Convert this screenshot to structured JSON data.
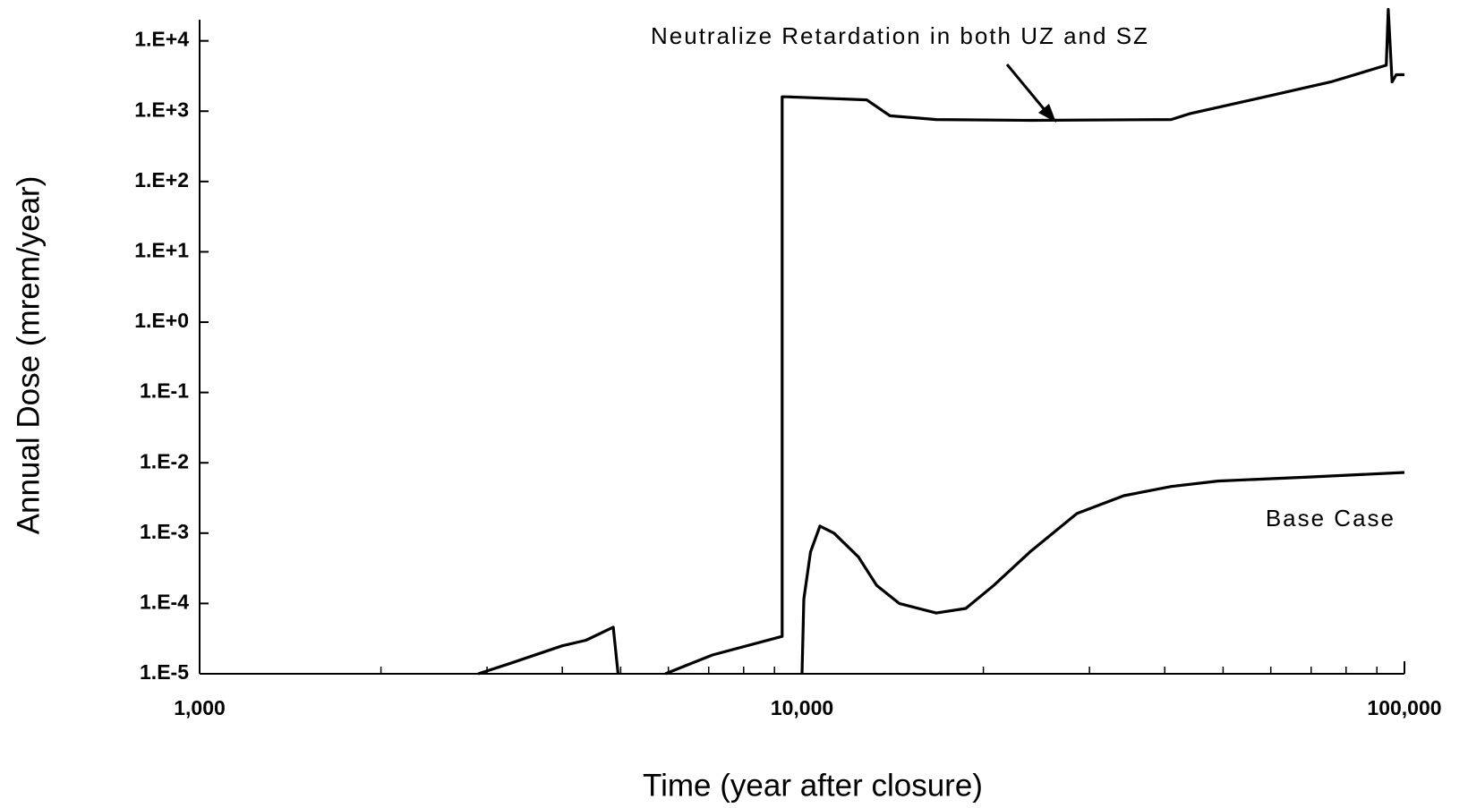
{
  "chart_data": {
    "type": "line",
    "xlabel": "Time (year after closure)",
    "ylabel": "Annual Dose (mrem/year)",
    "xscale": "log",
    "yscale": "log",
    "xlim": [
      1000,
      100000
    ],
    "ylim": [
      1e-05,
      20000
    ],
    "xticks": [
      {
        "value": 1000,
        "label": "1,000"
      },
      {
        "value": 10000,
        "label": "10,000"
      },
      {
        "value": 100000,
        "label": "100,000"
      }
    ],
    "xminorticks": [
      2000,
      3000,
      4000,
      5000,
      6000,
      7000,
      8000,
      9000,
      20000,
      30000,
      40000,
      50000,
      60000,
      70000,
      80000,
      90000
    ],
    "yticks": [
      {
        "value": 1e-05,
        "label": "1.E-5"
      },
      {
        "value": 0.0001,
        "label": "1.E-4"
      },
      {
        "value": 0.001,
        "label": "1.E-3"
      },
      {
        "value": 0.01,
        "label": "1.E-2"
      },
      {
        "value": 0.1,
        "label": "1.E-1"
      },
      {
        "value": 1,
        "label": "1.E+0"
      },
      {
        "value": 10,
        "label": "1.E+1"
      },
      {
        "value": 100,
        "label": "1.E+2"
      },
      {
        "value": 1000,
        "label": "1.E+3"
      },
      {
        "value": 10000,
        "label": "1.E+4"
      }
    ],
    "grid": false,
    "series": [
      {
        "name": "Neutralize Retardation in both UZ and SZ",
        "color": "#000000",
        "x": [
          2900,
          3230,
          4000,
          4380,
          4860,
          4950,
          null,
          5930,
          7100,
          9270,
          9270,
          9440,
          12800,
          14000,
          16700,
          23900,
          41000,
          44000,
          58700,
          75400,
          93300,
          94000,
          95400,
          96900,
          100000
        ],
        "values": [
          1e-05,
          1.35e-05,
          2.5e-05,
          3e-05,
          4.6e-05,
          1e-05,
          null,
          1e-05,
          1.85e-05,
          3.4e-05,
          1600,
          1600,
          1450,
          860,
          760,
          740,
          760,
          920,
          1600,
          2600,
          4500,
          28000,
          2600,
          3300,
          3300
        ]
      },
      {
        "name": "Base Case",
        "color": "#000000",
        "x": [
          10000,
          10070,
          10330,
          10710,
          11300,
          12400,
          13300,
          14500,
          16700,
          18700,
          20800,
          23900,
          28600,
          34200,
          41000,
          49000,
          70100,
          100000
        ],
        "values": [
          1e-05,
          0.000115,
          0.00054,
          0.00126,
          0.001,
          0.00046,
          0.00018,
          0.0001,
          7.3e-05,
          8.5e-05,
          0.00018,
          0.00054,
          0.0019,
          0.0034,
          0.0046,
          0.0055,
          0.0063,
          0.0073
        ]
      }
    ]
  }
}
